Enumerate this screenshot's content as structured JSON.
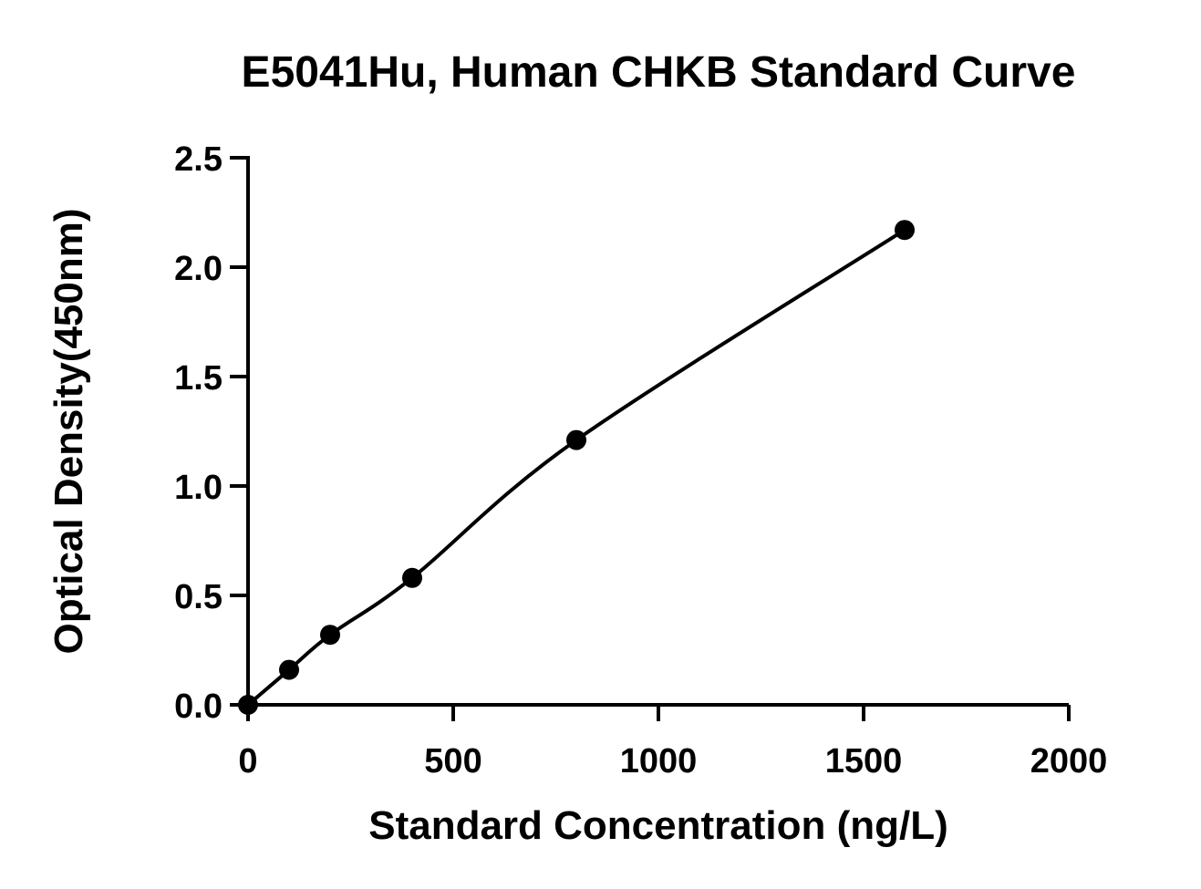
{
  "chart_data": {
    "type": "scatter",
    "title": "E5041Hu, Human CHKB Standard Curve",
    "xlabel": "Standard Concentration (ng/L)",
    "ylabel": "Optical Density(450nm)",
    "xlim": [
      0,
      2000
    ],
    "ylim": [
      0,
      2.5
    ],
    "x_ticks": [
      "0",
      "500",
      "1000",
      "1500",
      "2000"
    ],
    "y_ticks": [
      "0.0",
      "0.5",
      "1.0",
      "1.5",
      "2.0",
      "2.5"
    ],
    "grid": false,
    "legend": "none",
    "series": [
      {
        "points": [
          {
            "x": 0,
            "y": 0.0
          },
          {
            "x": 100,
            "y": 0.16
          },
          {
            "x": 200,
            "y": 0.32
          },
          {
            "x": 400,
            "y": 0.58
          },
          {
            "x": 800,
            "y": 1.21
          },
          {
            "x": 1600,
            "y": 2.17
          }
        ],
        "fit_curve": true,
        "color": "#000000"
      }
    ]
  }
}
